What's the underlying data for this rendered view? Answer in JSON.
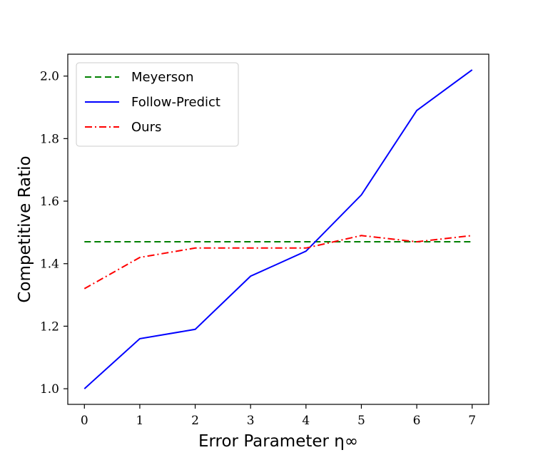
{
  "chart_data": {
    "type": "line",
    "x": [
      0,
      1,
      2,
      3,
      4,
      5,
      6,
      7
    ],
    "xlabel": "Error Parameter η∞",
    "ylabel": "Competitive Ratio",
    "xlim": [
      -0.3,
      7.3
    ],
    "ylim": [
      0.95,
      2.07
    ],
    "xticks": [
      "0",
      "1",
      "2",
      "3",
      "4",
      "5",
      "6",
      "7"
    ],
    "yticks": [
      "1.0",
      "1.2",
      "1.4",
      "1.6",
      "1.8",
      "2.0"
    ],
    "grid": false,
    "legend_position": "top-left",
    "series": [
      {
        "name": "Meyerson",
        "values": [
          1.47,
          1.47,
          1.47,
          1.47,
          1.47,
          1.47,
          1.47,
          1.47
        ],
        "color": "#008000",
        "style": "dashed"
      },
      {
        "name": "Follow-Predict",
        "values": [
          1.0,
          1.16,
          1.19,
          1.36,
          1.44,
          1.62,
          1.89,
          2.02
        ],
        "color": "#0000ff",
        "style": "solid"
      },
      {
        "name": "Ours",
        "values": [
          1.32,
          1.42,
          1.45,
          1.45,
          1.45,
          1.49,
          1.47,
          1.49
        ],
        "color": "#ff0000",
        "style": "dashdot"
      }
    ]
  }
}
